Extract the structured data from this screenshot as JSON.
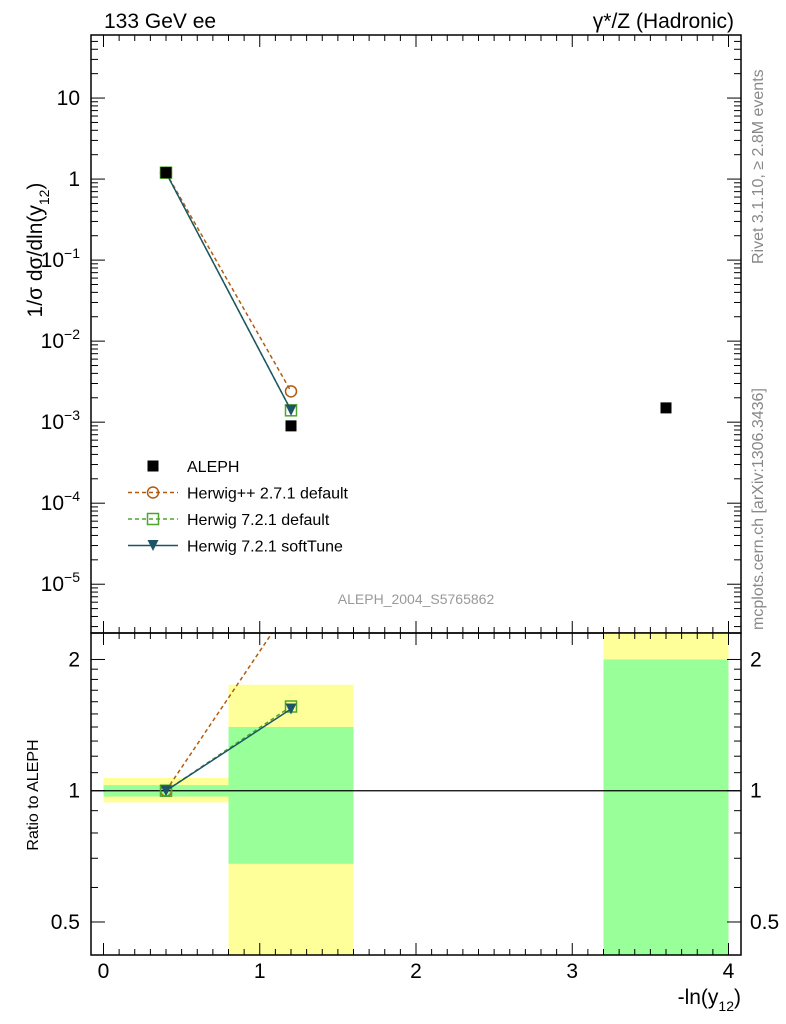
{
  "header": {
    "left_title": "133 GeV ee",
    "right_title": "γ*/Z (Hadronic)"
  },
  "side_labels": {
    "rivet": "Rivet 3.1.10, ≥ 2.8M events",
    "mcplots": "mcplots.cern.ch [arXiv:1306.3436]"
  },
  "watermark": "ALEPH_2004_S5765862",
  "colors": {
    "aleph": "#000000",
    "herwigpp": "#b25b0e",
    "herwig_default": "#4ea52e",
    "herwig_softtune": "#1d5566",
    "band_inner": "#99ff99",
    "band_outer": "#ffff99"
  },
  "chart_data": [
    {
      "type": "scatter",
      "title": "",
      "ylabel_main": "1/σ  dσ/dln(y",
      "ylabel_sub": "12",
      "ylabel_close": ")",
      "log_y": true,
      "ylim": [
        2.5e-06,
        60
      ],
      "xlim": [
        -0.08,
        4.08
      ],
      "x_ticks": [
        0,
        1,
        2,
        3,
        4
      ],
      "y_ticks": [
        {
          "value": 10,
          "base": "10",
          "exp": ""
        },
        {
          "value": 1,
          "base": "1",
          "exp": ""
        },
        {
          "value": 0.1,
          "base": "10",
          "exp": "−1"
        },
        {
          "value": 0.01,
          "base": "10",
          "exp": "−2"
        },
        {
          "value": 0.001,
          "base": "10",
          "exp": "−3"
        },
        {
          "value": 0.0001,
          "base": "10",
          "exp": "−4"
        },
        {
          "value": 1e-05,
          "base": "10",
          "exp": "−5"
        }
      ],
      "legend_position": "lower-left",
      "series": [
        {
          "name": "ALEPH",
          "style": "data",
          "marker": "square-filled",
          "x": [
            0.4,
            1.2,
            3.6
          ],
          "y": [
            1.2,
            0.0009,
            0.0015
          ]
        },
        {
          "name": "Herwig++ 2.7.1 default",
          "style": "dashed",
          "marker": "circle-open",
          "x": [
            0.4,
            1.2
          ],
          "y": [
            1.2,
            0.0024
          ]
        },
        {
          "name": "Herwig 7.2.1 default",
          "style": "dashed",
          "marker": "square-open",
          "x": [
            0.4,
            1.2
          ],
          "y": [
            1.2,
            0.0014
          ]
        },
        {
          "name": "Herwig 7.2.1 softTune",
          "style": "solid",
          "marker": "triangle-down-filled",
          "x": [
            0.4,
            1.2
          ],
          "y": [
            1.2,
            0.0014
          ]
        }
      ]
    },
    {
      "type": "line",
      "title": "",
      "ylabel": "Ratio to ALEPH",
      "xlabel_main": "-ln(y",
      "xlabel_sub": "12",
      "xlabel_close": ")",
      "log_y": true,
      "ylim": [
        0.42,
        2.3
      ],
      "xlim": [
        -0.08,
        4.08
      ],
      "x_ticks": [
        0,
        1,
        2,
        3,
        4
      ],
      "y_ticks": [
        0.5,
        1,
        2
      ],
      "reference_line": 1,
      "bands": [
        {
          "x": [
            0.0,
            0.8
          ],
          "inner": [
            0.97,
            1.03
          ],
          "outer": [
            0.94,
            1.07
          ]
        },
        {
          "x": [
            0.8,
            1.6
          ],
          "inner": [
            0.68,
            1.4
          ],
          "outer": [
            0.42,
            1.75
          ]
        },
        {
          "x": [
            3.2,
            4.0
          ],
          "inner": [
            0.42,
            2.0
          ],
          "outer": [
            0.42,
            2.3
          ]
        }
      ],
      "series": [
        {
          "name": "Herwig++ 2.7.1 default",
          "x": [
            0.4,
            1.2
          ],
          "y": [
            1.0,
            2.67
          ]
        },
        {
          "name": "Herwig 7.2.1 default",
          "x": [
            0.4,
            1.2
          ],
          "y": [
            1.0,
            1.56
          ]
        },
        {
          "name": "Herwig 7.2.1 softTune",
          "x": [
            0.4,
            1.2
          ],
          "y": [
            1.0,
            1.54
          ]
        }
      ]
    }
  ]
}
